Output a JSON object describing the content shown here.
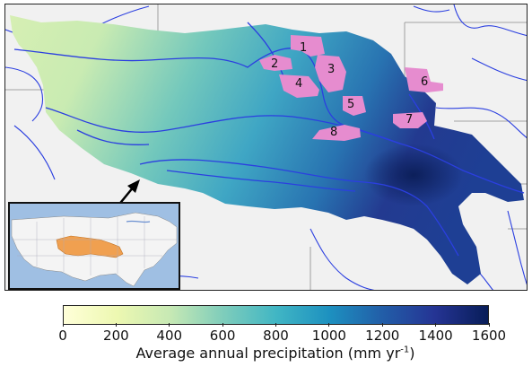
{
  "map": {
    "regions": [
      "1",
      "2",
      "3",
      "4",
      "5",
      "6",
      "7",
      "8"
    ],
    "colors": {
      "background": "#f1f1f1",
      "rivers": "#2b3fe0",
      "region_highlight": "#e68ccf",
      "inset_basin": "#f0a050",
      "inset_ocean": "#9fbfe3",
      "inset_land": "#f4f4f4",
      "arrow": "#000000"
    }
  },
  "colorbar": {
    "ticks": [
      "0",
      "200",
      "400",
      "600",
      "800",
      "1000",
      "1200",
      "1400",
      "1600"
    ],
    "label_main": "Average annual precipitation (mm yr",
    "label_sup": "-1",
    "label_end": ")",
    "scale": "YlGnBu",
    "range": [
      0,
      1600
    ]
  }
}
